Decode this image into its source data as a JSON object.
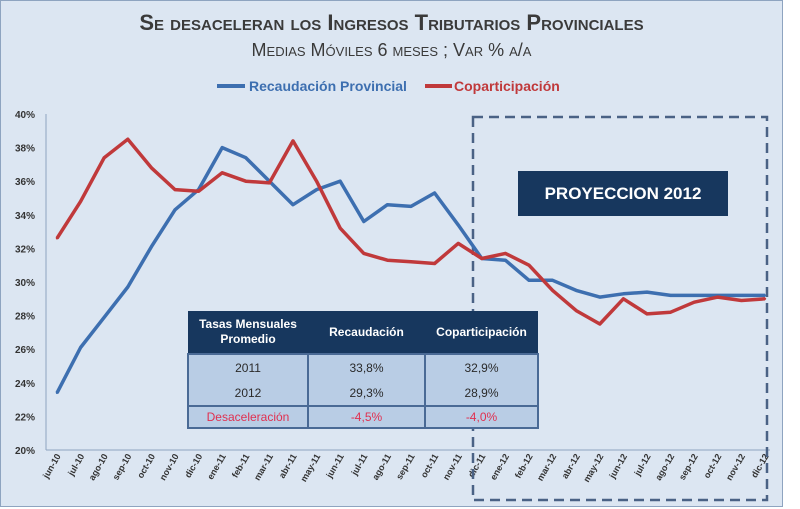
{
  "chart_data": {
    "type": "line",
    "title": "Se desaceleran los Ingresos Tributarios Provinciales",
    "subtitle": "Medias Móviles 6 meses ; Var % a/a",
    "xlabel": "",
    "ylabel": "",
    "ylim": [
      20,
      40
    ],
    "yticks": [
      "20%",
      "22%",
      "24%",
      "26%",
      "28%",
      "30%",
      "32%",
      "34%",
      "36%",
      "38%",
      "40%"
    ],
    "ytick_values": [
      20,
      22,
      24,
      26,
      28,
      30,
      32,
      34,
      36,
      38,
      40
    ],
    "legend_position": "top",
    "x": [
      "jun-10",
      "jul-10",
      "ago-10",
      "sep-10",
      "oct-10",
      "nov-10",
      "dic-10",
      "ene-11",
      "feb-11",
      "mar-11",
      "abr-11",
      "may-11",
      "jun-11",
      "jul-11",
      "ago-11",
      "sep-11",
      "oct-11",
      "nov-11",
      "dic-11",
      "ene-12",
      "feb-12",
      "mar-12",
      "abr-12",
      "may-12",
      "jun-12",
      "jul-12",
      "ago-12",
      "sep-12",
      "oct-12",
      "nov-12",
      "dic-12"
    ],
    "series": [
      {
        "name": "Recaudación Provincial",
        "color": "#3d6fb0",
        "values": [
          23.4,
          26.1,
          27.9,
          29.7,
          32.1,
          34.3,
          35.5,
          38.0,
          37.4,
          36.0,
          34.6,
          35.5,
          36.0,
          33.6,
          34.6,
          34.5,
          35.3,
          33.4,
          31.4,
          31.3,
          30.1,
          30.1,
          29.5,
          29.1,
          29.3,
          29.4,
          29.2,
          29.2,
          29.2,
          29.2,
          29.2
        ]
      },
      {
        "name": "Coparticipación",
        "color": "#c0393b",
        "values": [
          32.6,
          34.8,
          37.4,
          38.5,
          36.8,
          35.5,
          35.4,
          36.5,
          36.0,
          35.9,
          38.4,
          36.0,
          33.2,
          31.7,
          31.3,
          31.2,
          31.1,
          32.3,
          31.4,
          31.7,
          31.0,
          29.5,
          28.3,
          27.5,
          29.0,
          28.1,
          28.2,
          28.8,
          29.1,
          28.9,
          29.0
        ]
      }
    ],
    "annotations": {
      "projection_label": "PROYECCION 2012",
      "projection_range": [
        "dic-11",
        "dic-12"
      ]
    }
  },
  "table": {
    "header": [
      "Tasas Mensuales Promedio",
      "Recaudación",
      "Coparticipación"
    ],
    "rows": [
      [
        "2011",
        "33,8%",
        "32,9%"
      ],
      [
        "2012",
        "29,3%",
        "28,9%"
      ],
      [
        "Desaceleración",
        "-4,5%",
        "-4,0%"
      ]
    ]
  }
}
